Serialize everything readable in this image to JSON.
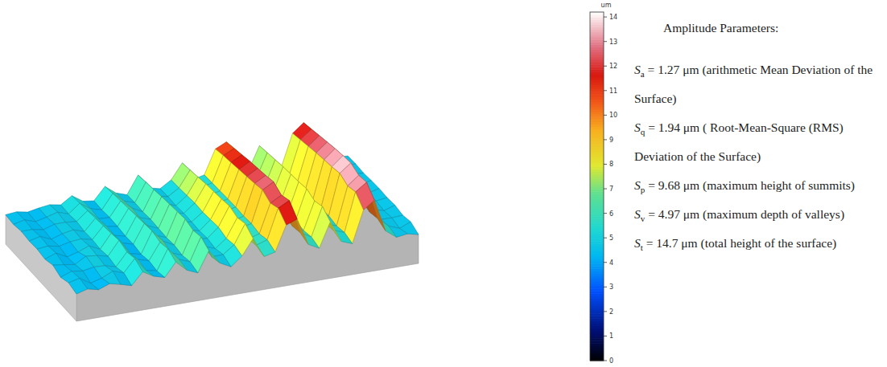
{
  "chart_data": {
    "type": "surface",
    "surface": {
      "heights": [
        [
          4.0,
          4.6,
          4.1,
          4.9,
          4.4,
          3.8,
          6.1,
          4.9,
          4.3,
          6.9,
          5.0,
          4.1,
          8.0,
          5.3,
          4.2,
          5.9,
          8.9,
          5.1,
          5.6,
          10.4,
          11.2,
          6.0,
          4.9,
          9.6,
          5.5,
          4.7,
          10.8,
          12.3,
          6.1,
          4.5,
          4.8,
          4.3
        ],
        [
          4.5,
          5.0,
          3.7,
          4.3,
          5.3,
          4.6,
          7.0,
          4.4,
          3.9,
          7.8,
          5.4,
          4.6,
          9.0,
          4.8,
          4.9,
          6.4,
          10.1,
          5.6,
          6.3,
          12.0,
          13.1,
          6.6,
          5.4,
          10.9,
          6.0,
          5.2,
          12.6,
          14.1,
          6.8,
          5.0,
          4.2,
          5.1
        ],
        [
          3.9,
          4.7,
          4.4,
          4.8,
          4.7,
          4.1,
          6.6,
          4.8,
          4.2,
          7.4,
          5.0,
          4.2,
          8.6,
          5.2,
          4.4,
          6.0,
          9.6,
          5.2,
          5.8,
          11.3,
          12.5,
          6.2,
          5.0,
          10.3,
          5.6,
          4.8,
          12.1,
          13.8,
          6.4,
          4.6,
          4.6,
          4.7
        ],
        [
          4.6,
          4.3,
          4.0,
          5.2,
          5.0,
          4.5,
          7.2,
          4.3,
          3.8,
          7.9,
          5.6,
          4.5,
          9.1,
          4.9,
          4.7,
          6.5,
          10.2,
          5.7,
          6.1,
          12.2,
          13.4,
          6.7,
          5.3,
          11.0,
          6.1,
          5.1,
          12.9,
          14.5,
          6.9,
          4.9,
          4.3,
          5.0
        ],
        [
          4.1,
          4.9,
          3.8,
          4.4,
          5.2,
          4.2,
          6.9,
          4.7,
          4.1,
          7.7,
          5.1,
          4.3,
          8.9,
          5.1,
          4.5,
          6.3,
          9.9,
          5.3,
          5.9,
          11.8,
          13.0,
          6.3,
          5.1,
          10.7,
          5.7,
          4.9,
          12.5,
          14.3,
          6.5,
          4.7,
          4.5,
          4.8
        ],
        [
          4.4,
          4.6,
          4.2,
          4.7,
          4.9,
          4.4,
          6.7,
          4.5,
          4.0,
          7.5,
          5.3,
          4.4,
          8.7,
          4.9,
          4.6,
          6.1,
          9.7,
          5.5,
          6.0,
          11.5,
          12.7,
          6.5,
          5.2,
          10.5,
          5.9,
          5.0,
          12.2,
          14.0,
          6.7,
          4.8,
          4.4,
          4.9
        ],
        [
          4.3,
          4.8,
          3.9,
          4.6,
          5.0,
          4.3,
          6.5,
          4.6,
          4.2,
          7.3,
          5.2,
          4.5,
          8.5,
          5.0,
          4.6,
          6.2,
          9.5,
          5.4,
          5.9,
          11.2,
          12.4,
          6.4,
          5.2,
          10.3,
          5.8,
          5.0,
          11.9,
          13.6,
          6.5,
          4.8,
          4.5,
          4.8
        ],
        [
          4.5,
          4.5,
          4.1,
          4.8,
          4.8,
          4.6,
          6.3,
          4.4,
          4.3,
          7.1,
          5.4,
          4.3,
          8.2,
          5.2,
          4.4,
          6.0,
          9.2,
          5.3,
          5.8,
          10.9,
          12.0,
          6.2,
          5.0,
          10.0,
          5.6,
          4.9,
          11.5,
          13.2,
          6.3,
          4.6,
          4.7,
          4.6
        ],
        [
          4.2,
          4.7,
          4.0,
          4.5,
          5.1,
          4.4,
          6.1,
          4.7,
          4.1,
          6.9,
          5.1,
          4.4,
          8.0,
          5.0,
          4.5,
          5.8,
          8.9,
          5.2,
          5.7,
          10.6,
          11.6,
          6.0,
          5.1,
          9.7,
          5.5,
          4.8,
          11.1,
          12.8,
          6.2,
          4.7,
          4.5,
          4.7
        ],
        [
          4.4,
          4.6,
          4.2,
          4.6,
          4.9,
          4.5,
          5.9,
          4.5,
          4.2,
          6.6,
          5.0,
          4.3,
          7.7,
          4.9,
          4.4,
          5.7,
          8.6,
          5.1,
          5.6,
          10.2,
          11.2,
          5.9,
          5.0,
          9.4,
          5.4,
          4.7,
          10.7,
          12.4,
          6.0,
          4.6,
          4.6,
          4.6
        ]
      ]
    },
    "colorbar": {
      "label": "um",
      "range": [
        0,
        14.2
      ],
      "ticks": [
        0,
        1,
        2,
        3,
        4,
        5,
        6,
        7,
        8,
        9,
        10,
        11,
        12,
        13,
        14
      ]
    }
  },
  "panel": {
    "title": "Amplitude Parameters:",
    "relation": "=",
    "items": [
      {
        "symbol": "S",
        "subscript": "a",
        "value": 1.27,
        "unit": "μm",
        "description": "(arithmetic Mean Deviation of the Surface)"
      },
      {
        "symbol": "S",
        "subscript": "q",
        "value": 1.94,
        "unit": "μm",
        "description": "( Root-Mean-Square (RMS) Deviation of the Surface)"
      },
      {
        "symbol": "S",
        "subscript": "p",
        "value": 9.68,
        "unit": "μm",
        "description": "(maximum height of summits)"
      },
      {
        "symbol": "S",
        "subscript": "v",
        "value": 4.97,
        "unit": "μm",
        "description": "(maximum depth of valleys)"
      },
      {
        "symbol": "S",
        "subscript": "t",
        "value": 14.7,
        "unit": "μm",
        "description": "(total height of the surface)"
      }
    ]
  }
}
